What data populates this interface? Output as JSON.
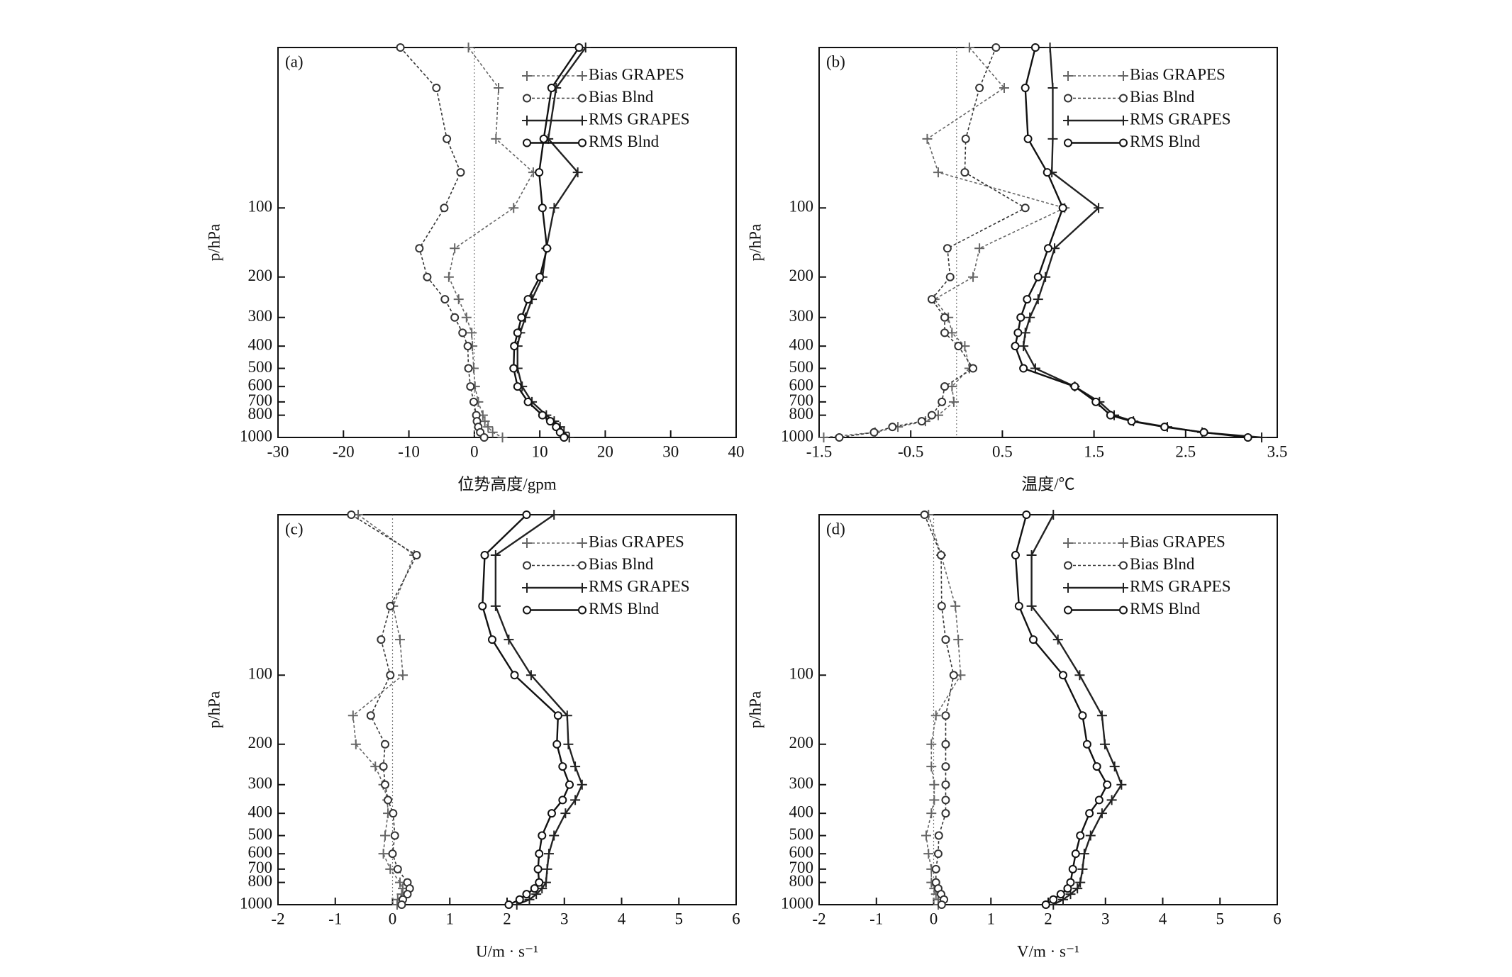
{
  "chart_data": [
    {
      "type": "line",
      "title": "(a)",
      "xlabel": "位势高度/gpm",
      "ylabel": "p/hPa",
      "ylog": true,
      "xlim": [
        -30,
        40
      ],
      "xticks": [
        -30,
        -20,
        -10,
        0,
        10,
        20,
        30,
        40
      ],
      "ylim": [
        1000,
        20
      ],
      "yticks": [
        100,
        200,
        300,
        400,
        500,
        600,
        700,
        800,
        1000
      ],
      "y": [
        20,
        30,
        50,
        70,
        100,
        150,
        200,
        250,
        300,
        350,
        400,
        500,
        600,
        700,
        800,
        850,
        900,
        950,
        1000
      ],
      "series": [
        {
          "name": "Bias GRAPES",
          "color": "#666666",
          "dash": true,
          "marker": "plus",
          "values": [
            -0.9,
            3.7,
            3.3,
            9,
            6,
            -3,
            -3.9,
            -2.4,
            -1.2,
            -0.4,
            -0.3,
            -0.1,
            0.1,
            0.6,
            1.3,
            1.6,
            2.1,
            2.8,
            4.3
          ]
        },
        {
          "name": "Bias Blnd",
          "color": "#333333",
          "dash": true,
          "marker": "circle",
          "values": [
            -11.3,
            -5.8,
            -4.2,
            -2.1,
            -4.6,
            -8.4,
            -7.2,
            -4.5,
            -3,
            -1.8,
            -1,
            -0.9,
            -0.6,
            -0.1,
            0.3,
            0.4,
            0.6,
            0.9,
            1.5
          ]
        },
        {
          "name": "RMS GRAPES",
          "color": "#222222",
          "dash": false,
          "marker": "plus",
          "values": [
            17,
            12.5,
            11.3,
            15.8,
            12.2,
            11,
            10.4,
            8.8,
            7.8,
            7,
            6.6,
            6.6,
            7.3,
            8.8,
            11,
            12.2,
            13.1,
            13.7,
            14.5
          ]
        },
        {
          "name": "RMS Blnd",
          "color": "#111111",
          "dash": false,
          "marker": "circle",
          "values": [
            16,
            11.8,
            10.6,
            9.9,
            10.4,
            11.1,
            10,
            8.2,
            7.2,
            6.6,
            6.1,
            6,
            6.6,
            8.2,
            10.4,
            11.6,
            12.5,
            13.1,
            13.7
          ]
        }
      ]
    },
    {
      "type": "line",
      "title": "(b)",
      "xlabel": "温度/℃",
      "ylabel": "p/hPa",
      "ylog": true,
      "xlim": [
        -1.5,
        3.5
      ],
      "xticks": [
        -1.5,
        -0.5,
        0.5,
        1.5,
        2.5,
        3.5
      ],
      "ylim": [
        1000,
        20
      ],
      "yticks": [
        100,
        200,
        300,
        400,
        500,
        600,
        700,
        800,
        1000
      ],
      "y": [
        20,
        30,
        50,
        70,
        100,
        150,
        200,
        250,
        300,
        350,
        400,
        500,
        600,
        700,
        800,
        850,
        900,
        950,
        1000
      ],
      "series": [
        {
          "name": "Bias GRAPES",
          "color": "#666666",
          "dash": true,
          "marker": "plus",
          "values": [
            0.14,
            0.52,
            -0.32,
            -0.2,
            1.18,
            0.25,
            0.18,
            -0.24,
            -0.09,
            -0.05,
            0.09,
            0.14,
            -0.05,
            -0.03,
            -0.2,
            -0.34,
            -0.64,
            -0.89,
            -1.45
          ]
        },
        {
          "name": "Bias Blnd",
          "color": "#333333",
          "dash": true,
          "marker": "circle",
          "values": [
            0.43,
            0.25,
            0.1,
            0.09,
            0.75,
            -0.1,
            -0.07,
            -0.27,
            -0.13,
            -0.13,
            0.02,
            0.18,
            -0.13,
            -0.16,
            -0.27,
            -0.38,
            -0.7,
            -0.9,
            -1.28
          ]
        },
        {
          "name": "RMS GRAPES",
          "color": "#222222",
          "dash": false,
          "marker": "plus",
          "values": [
            1.02,
            1.05,
            1.05,
            1.04,
            1.55,
            1.07,
            0.97,
            0.89,
            0.8,
            0.75,
            0.73,
            0.86,
            1.29,
            1.56,
            1.72,
            1.93,
            2.3,
            2.68,
            3.33
          ]
        },
        {
          "name": "RMS Blnd",
          "color": "#111111",
          "dash": false,
          "marker": "circle",
          "values": [
            0.86,
            0.75,
            0.78,
            0.99,
            1.16,
            1,
            0.89,
            0.77,
            0.7,
            0.67,
            0.64,
            0.73,
            1.29,
            1.52,
            1.68,
            1.91,
            2.27,
            2.7,
            3.18
          ]
        }
      ]
    },
    {
      "type": "line",
      "title": "(c)",
      "xlabel": "U/m · s⁻¹",
      "ylabel": "p/hPa",
      "ylog": true,
      "xlim": [
        -2,
        6
      ],
      "xticks": [
        -2,
        -1,
        0,
        1,
        2,
        3,
        4,
        5,
        6
      ],
      "ylim": [
        1000,
        20
      ],
      "yticks": [
        100,
        200,
        300,
        400,
        500,
        600,
        700,
        800,
        1000
      ],
      "y": [
        20,
        30,
        50,
        70,
        100,
        150,
        200,
        250,
        300,
        350,
        400,
        500,
        600,
        700,
        800,
        850,
        900,
        950,
        1000
      ],
      "series": [
        {
          "name": "Bias GRAPES",
          "color": "#666666",
          "dash": true,
          "marker": "plus",
          "values": [
            -0.6,
            0.38,
            0.01,
            0.13,
            0.18,
            -0.69,
            -0.64,
            -0.3,
            -0.16,
            -0.09,
            -0.08,
            -0.13,
            -0.16,
            -0.04,
            0.13,
            0.18,
            0.16,
            0.09,
            0.08
          ]
        },
        {
          "name": "Bias Blnd",
          "color": "#333333",
          "dash": true,
          "marker": "circle",
          "values": [
            -0.72,
            0.42,
            -0.04,
            -0.2,
            -0.04,
            -0.38,
            -0.13,
            -0.16,
            -0.13,
            -0.08,
            0.01,
            0.04,
            0,
            0.09,
            0.26,
            0.3,
            0.26,
            0.18,
            0.16
          ]
        },
        {
          "name": "RMS GRAPES",
          "color": "#222222",
          "dash": false,
          "marker": "plus",
          "values": [
            2.82,
            1.8,
            1.8,
            2.03,
            2.42,
            3.05,
            3.07,
            3.19,
            3.31,
            3.19,
            3.02,
            2.82,
            2.73,
            2.7,
            2.68,
            2.61,
            2.51,
            2.39,
            2.17
          ]
        },
        {
          "name": "RMS Blnd",
          "color": "#111111",
          "dash": false,
          "marker": "circle",
          "values": [
            2.34,
            1.61,
            1.57,
            1.74,
            2.13,
            2.89,
            2.87,
            2.97,
            3.09,
            2.97,
            2.78,
            2.61,
            2.56,
            2.54,
            2.56,
            2.48,
            2.34,
            2.22,
            2.03
          ]
        }
      ]
    },
    {
      "type": "line",
      "title": "(d)",
      "xlabel": "V/m · s⁻¹",
      "ylabel": "p/hPa",
      "ylog": true,
      "xlim": [
        -2,
        6
      ],
      "xticks": [
        -2,
        -1,
        0,
        1,
        2,
        3,
        4,
        5,
        6
      ],
      "ylim": [
        1000,
        20
      ],
      "yticks": [
        100,
        200,
        300,
        400,
        500,
        600,
        700,
        800,
        1000
      ],
      "y": [
        20,
        30,
        50,
        70,
        100,
        150,
        200,
        250,
        300,
        350,
        400,
        500,
        600,
        700,
        800,
        850,
        900,
        950,
        1000
      ],
      "series": [
        {
          "name": "Bias GRAPES",
          "color": "#666666",
          "dash": true,
          "marker": "plus",
          "values": [
            -0.09,
            0.13,
            0.38,
            0.43,
            0.47,
            0.04,
            -0.04,
            -0.04,
            0.01,
            0.01,
            -0.04,
            -0.13,
            -0.09,
            -0.04,
            -0.04,
            0.01,
            0.04,
            0.08,
            0.08
          ]
        },
        {
          "name": "Bias Blnd",
          "color": "#333333",
          "dash": true,
          "marker": "circle",
          "values": [
            -0.16,
            0.13,
            0.14,
            0.21,
            0.35,
            0.21,
            0.21,
            0.21,
            0.21,
            0.21,
            0.21,
            0.09,
            0.08,
            0.04,
            0.04,
            0.08,
            0.13,
            0.18,
            0.14
          ]
        },
        {
          "name": "RMS GRAPES",
          "color": "#222222",
          "dash": false,
          "marker": "plus",
          "values": [
            2.09,
            1.71,
            1.71,
            2.17,
            2.55,
            2.94,
            2.99,
            3.16,
            3.28,
            3.11,
            2.94,
            2.74,
            2.63,
            2.6,
            2.56,
            2.51,
            2.39,
            2.26,
            2.09
          ]
        },
        {
          "name": "RMS Blnd",
          "color": "#111111",
          "dash": false,
          "marker": "circle",
          "values": [
            1.62,
            1.43,
            1.49,
            1.74,
            2.26,
            2.6,
            2.68,
            2.85,
            3.03,
            2.89,
            2.72,
            2.56,
            2.48,
            2.43,
            2.39,
            2.34,
            2.22,
            2.09,
            1.96
          ]
        }
      ]
    }
  ]
}
